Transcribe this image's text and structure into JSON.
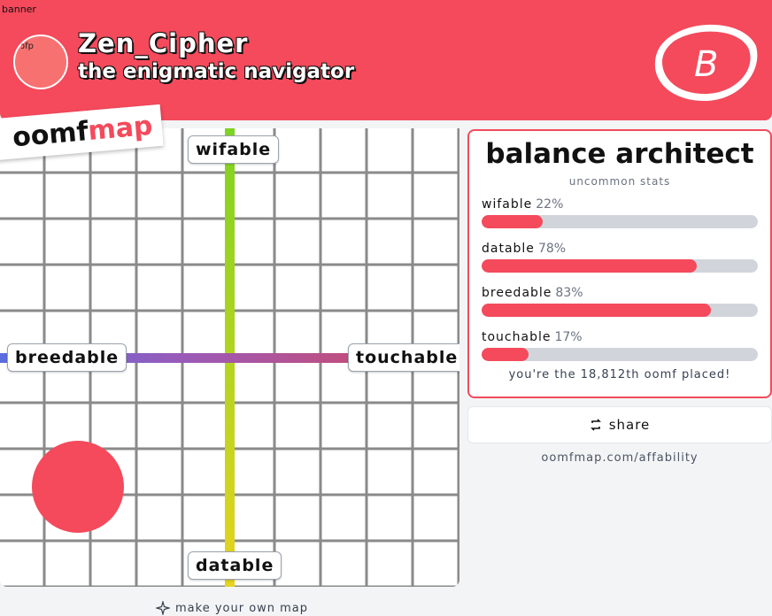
{
  "header": {
    "banner_alt": "banner",
    "pfp_alt": "pfp",
    "name": "Zen_Cipher",
    "tagline": "the enigmatic navigator",
    "logo_letter": "B"
  },
  "brand": {
    "part1": "oomf",
    "part2": "map"
  },
  "map": {
    "top": "wifable",
    "bottom": "datable",
    "left": "breedable",
    "right": "touchable"
  },
  "card": {
    "title": "balance architect",
    "subtitle": "uncommon stats",
    "stats": [
      {
        "name": "wifable",
        "value": 22,
        "label": "22%"
      },
      {
        "name": "datable",
        "value": 78,
        "label": "78%"
      },
      {
        "name": "breedable",
        "value": 83,
        "label": "83%"
      },
      {
        "name": "touchable",
        "value": 17,
        "label": "17%"
      }
    ],
    "placed": "you're the 18,812th oomf placed!"
  },
  "share": "share",
  "url": "oomfmap.com/affability",
  "make_map": "make your own map"
}
